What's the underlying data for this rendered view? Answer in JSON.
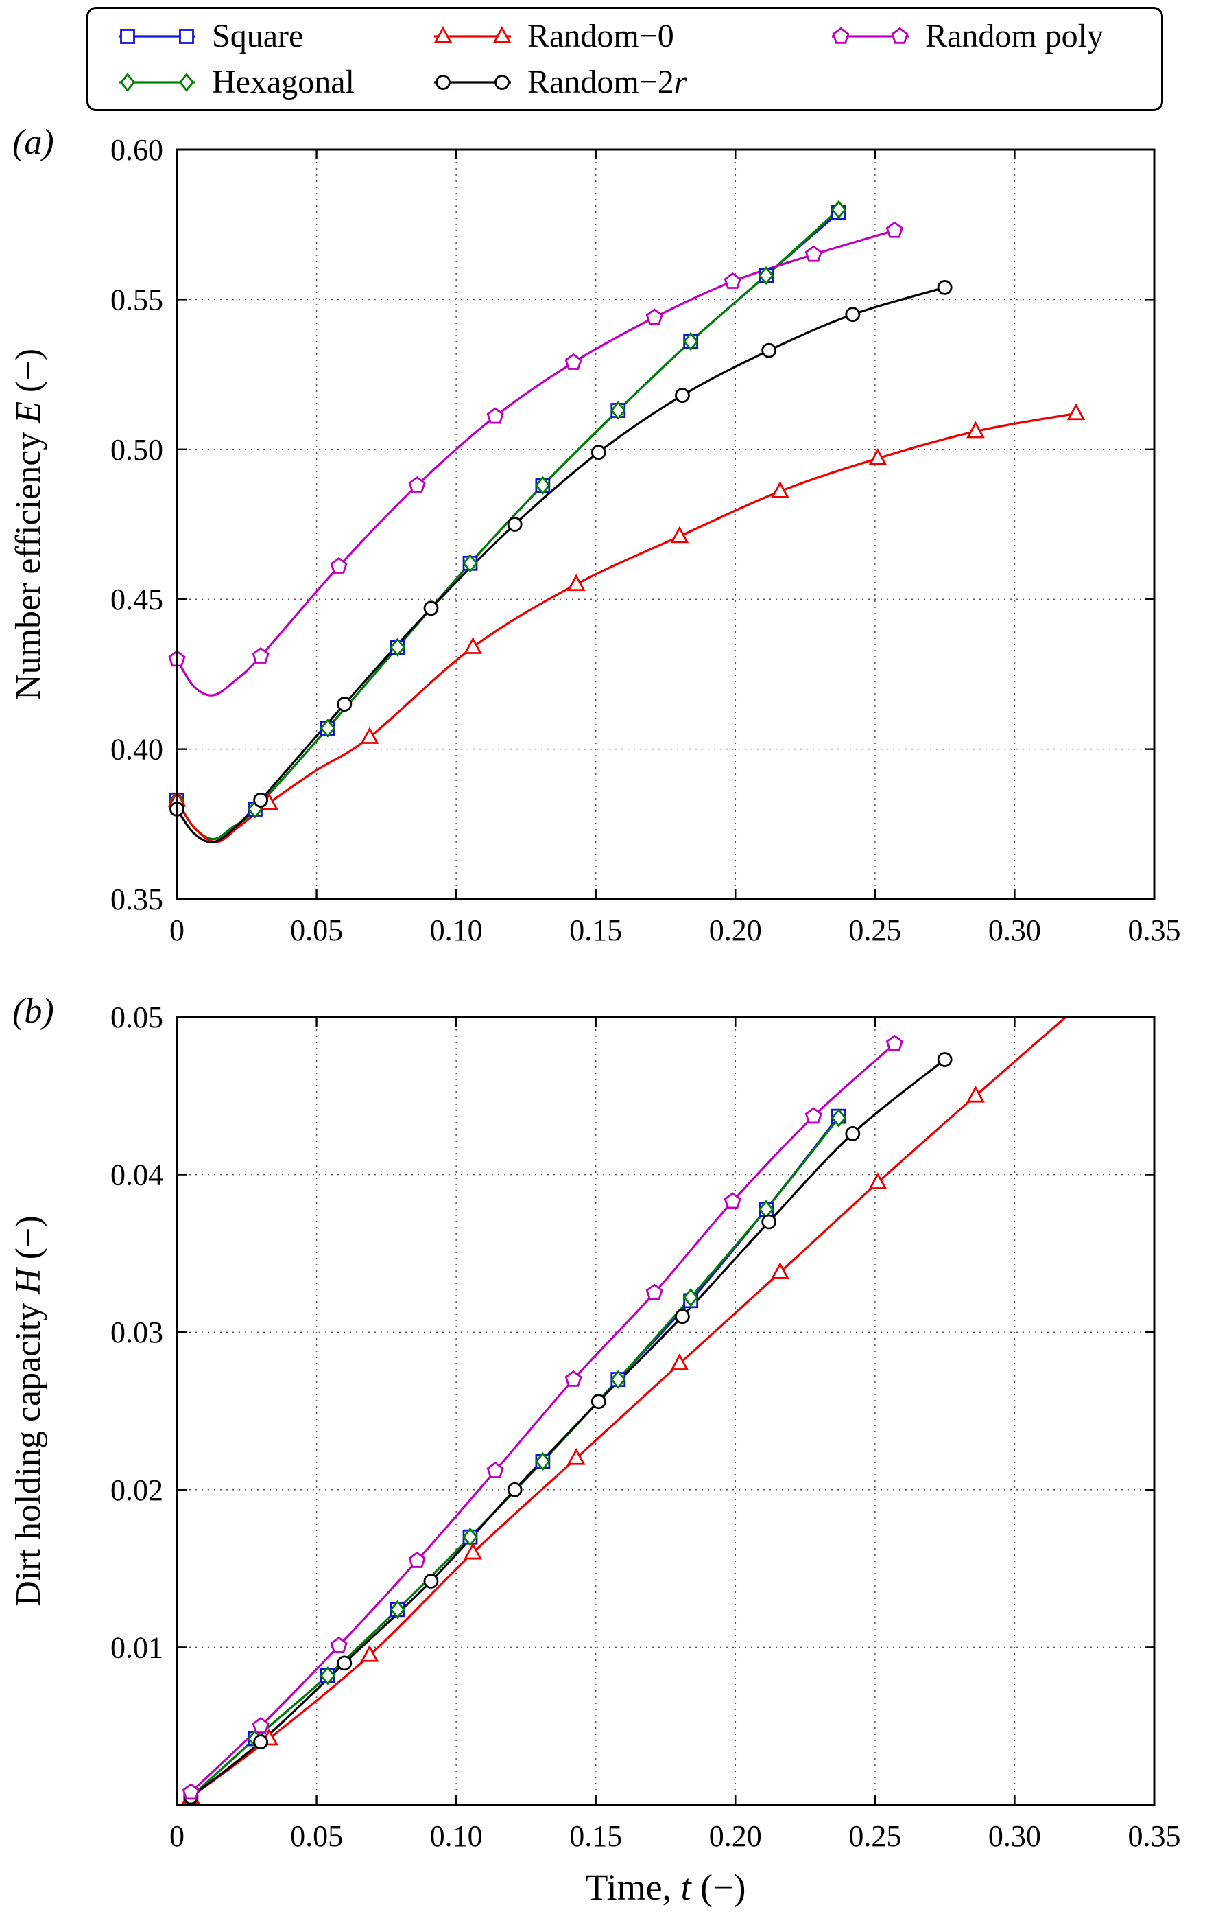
{
  "figure": {
    "panel_a_label": "(a)",
    "panel_b_label": "(b)",
    "background": "#ffffff"
  },
  "legend": {
    "position": "top",
    "border_color": "#000000",
    "items": [
      {
        "key": "square",
        "label": "Square",
        "label_parts": [
          [
            "Square",
            false
          ]
        ],
        "color": "#1111dd",
        "marker": "square"
      },
      {
        "key": "hexagonal",
        "label": "Hexagonal",
        "label_parts": [
          [
            "Hexagonal",
            false
          ]
        ],
        "color": "#008000",
        "marker": "diamond"
      },
      {
        "key": "random_0",
        "label": "Random−0",
        "label_parts": [
          [
            "Random−0",
            false
          ]
        ],
        "color": "#ee0000",
        "marker": "triangle"
      },
      {
        "key": "random_2r",
        "label": "Random−2r",
        "label_parts": [
          [
            "Random−2",
            false
          ],
          [
            "r",
            true
          ]
        ],
        "color": "#000000",
        "marker": "circle"
      },
      {
        "key": "random_poly",
        "label": "Random poly",
        "label_parts": [
          [
            "Random poly",
            false
          ]
        ],
        "color": "#bf00bf",
        "marker": "pentagon"
      }
    ]
  },
  "chart_data": [
    {
      "id": "a",
      "type": "line",
      "title": "",
      "ylabel": "Number efficiency E (−)",
      "ylabel_parts": [
        [
          "Number efficiency ",
          false
        ],
        [
          "E",
          true
        ],
        [
          " (−)",
          false
        ]
      ],
      "xlim": [
        0,
        0.35
      ],
      "ylim": [
        0.35,
        0.6
      ],
      "xticks": [
        0,
        0.05,
        0.1,
        0.15,
        0.2,
        0.25,
        0.3,
        0.35
      ],
      "xtick_labels": [
        "0",
        "0.05",
        "0.10",
        "0.15",
        "0.20",
        "0.25",
        "0.30",
        "0.35"
      ],
      "yticks": [
        0.35,
        0.4,
        0.45,
        0.5,
        0.55,
        0.6
      ],
      "ytick_labels": [
        "0.35",
        "0.40",
        "0.45",
        "0.50",
        "0.55",
        "0.60"
      ],
      "grid": true,
      "legend_position": "top-outside",
      "series": [
        {
          "key": "square",
          "line_x": [
            0,
            0.006,
            0.013,
            0.02,
            0.028,
            0.054,
            0.079,
            0.105,
            0.131,
            0.158,
            0.184,
            0.211,
            0.237
          ],
          "line_y": [
            0.383,
            0.374,
            0.37,
            0.374,
            0.38,
            0.407,
            0.434,
            0.462,
            0.488,
            0.513,
            0.536,
            0.558,
            0.579
          ],
          "marker_x": [
            0,
            0.028,
            0.054,
            0.079,
            0.105,
            0.131,
            0.158,
            0.184,
            0.211,
            0.237
          ],
          "marker_y": [
            0.383,
            0.38,
            0.407,
            0.434,
            0.462,
            0.488,
            0.513,
            0.536,
            0.558,
            0.579
          ]
        },
        {
          "key": "hexagonal",
          "line_x": [
            0,
            0.006,
            0.013,
            0.02,
            0.028,
            0.054,
            0.079,
            0.105,
            0.131,
            0.158,
            0.184,
            0.211,
            0.237
          ],
          "line_y": [
            0.383,
            0.374,
            0.37,
            0.374,
            0.38,
            0.407,
            0.434,
            0.462,
            0.488,
            0.513,
            0.536,
            0.558,
            0.58
          ],
          "marker_x": [
            0,
            0.028,
            0.054,
            0.079,
            0.105,
            0.131,
            0.158,
            0.184,
            0.211,
            0.237
          ],
          "marker_y": [
            0.383,
            0.38,
            0.407,
            0.434,
            0.462,
            0.488,
            0.513,
            0.536,
            0.558,
            0.58
          ]
        },
        {
          "key": "random_0",
          "line_x": [
            0,
            0.006,
            0.014,
            0.022,
            0.033,
            0.05,
            0.069,
            0.106,
            0.143,
            0.18,
            0.216,
            0.251,
            0.286,
            0.322
          ],
          "line_y": [
            0.383,
            0.374,
            0.369,
            0.374,
            0.382,
            0.393,
            0.404,
            0.434,
            0.455,
            0.471,
            0.486,
            0.497,
            0.506,
            0.512
          ],
          "marker_x": [
            0,
            0.033,
            0.069,
            0.106,
            0.143,
            0.18,
            0.216,
            0.251,
            0.286,
            0.322
          ],
          "marker_y": [
            0.383,
            0.382,
            0.404,
            0.434,
            0.455,
            0.471,
            0.486,
            0.497,
            0.506,
            0.512
          ]
        },
        {
          "key": "random_2r",
          "line_x": [
            0,
            0.006,
            0.013,
            0.021,
            0.03,
            0.06,
            0.091,
            0.121,
            0.151,
            0.181,
            0.212,
            0.242,
            0.275
          ],
          "line_y": [
            0.38,
            0.372,
            0.369,
            0.374,
            0.383,
            0.415,
            0.447,
            0.475,
            0.499,
            0.518,
            0.533,
            0.545,
            0.554
          ],
          "marker_x": [
            0,
            0.03,
            0.06,
            0.091,
            0.121,
            0.151,
            0.181,
            0.212,
            0.242,
            0.275
          ],
          "marker_y": [
            0.38,
            0.383,
            0.415,
            0.447,
            0.475,
            0.499,
            0.518,
            0.533,
            0.545,
            0.554
          ]
        },
        {
          "key": "random_poly",
          "line_x": [
            0,
            0.006,
            0.013,
            0.021,
            0.03,
            0.058,
            0.086,
            0.114,
            0.142,
            0.171,
            0.199,
            0.228,
            0.257
          ],
          "line_y": [
            0.43,
            0.421,
            0.418,
            0.423,
            0.431,
            0.461,
            0.488,
            0.511,
            0.529,
            0.544,
            0.556,
            0.565,
            0.573
          ],
          "marker_x": [
            0,
            0.03,
            0.058,
            0.086,
            0.114,
            0.142,
            0.171,
            0.199,
            0.228,
            0.257
          ],
          "marker_y": [
            0.43,
            0.431,
            0.461,
            0.488,
            0.511,
            0.529,
            0.544,
            0.556,
            0.565,
            0.573
          ]
        }
      ]
    },
    {
      "id": "b",
      "type": "line",
      "title": "",
      "xlabel": "Time, t (−)",
      "xlabel_parts": [
        [
          "Time, ",
          false
        ],
        [
          "t",
          true
        ],
        [
          " (−)",
          false
        ]
      ],
      "ylabel": "Dirt holding capacity H (−)",
      "ylabel_parts": [
        [
          "Dirt holding capacity ",
          false
        ],
        [
          "H",
          true
        ],
        [
          " (−)",
          false
        ]
      ],
      "xlim": [
        0,
        0.35
      ],
      "ylim": [
        0,
        0.05
      ],
      "xticks": [
        0,
        0.05,
        0.1,
        0.15,
        0.2,
        0.25,
        0.3,
        0.35
      ],
      "xtick_labels": [
        "0",
        "0.05",
        "0.10",
        "0.15",
        "0.20",
        "0.25",
        "0.30",
        "0.35"
      ],
      "yticks": [
        0,
        0.01,
        0.02,
        0.03,
        0.04,
        0.05
      ],
      "ytick_labels": [
        "",
        "0.01",
        "0.02",
        "0.03",
        "0.04",
        "0.05"
      ],
      "grid": true,
      "series": [
        {
          "key": "square",
          "line_x": [
            0.005,
            0.028,
            0.054,
            0.079,
            0.105,
            0.131,
            0.158,
            0.184,
            0.211,
            0.237
          ],
          "line_y": [
            0.0005,
            0.0042,
            0.0082,
            0.0124,
            0.017,
            0.0218,
            0.027,
            0.032,
            0.0378,
            0.0437
          ],
          "marker_x": [
            0.005,
            0.028,
            0.054,
            0.079,
            0.105,
            0.131,
            0.158,
            0.184,
            0.211,
            0.237
          ],
          "marker_y": [
            0.0005,
            0.0042,
            0.0082,
            0.0124,
            0.017,
            0.0218,
            0.027,
            0.032,
            0.0378,
            0.0437
          ]
        },
        {
          "key": "hexagonal",
          "line_x": [
            0.005,
            0.028,
            0.054,
            0.079,
            0.105,
            0.131,
            0.158,
            0.184,
            0.211,
            0.237
          ],
          "line_y": [
            0.0005,
            0.0042,
            0.0082,
            0.0124,
            0.017,
            0.0218,
            0.027,
            0.0322,
            0.0378,
            0.0436
          ],
          "marker_x": [
            0.005,
            0.028,
            0.054,
            0.079,
            0.105,
            0.131,
            0.158,
            0.184,
            0.211,
            0.237
          ],
          "marker_y": [
            0.0005,
            0.0042,
            0.0082,
            0.0124,
            0.017,
            0.0218,
            0.027,
            0.0322,
            0.0378,
            0.0436
          ]
        },
        {
          "key": "random_0",
          "line_x": [
            0.005,
            0.033,
            0.069,
            0.106,
            0.143,
            0.18,
            0.216,
            0.251,
            0.286,
            0.33
          ],
          "line_y": [
            0.0005,
            0.0042,
            0.0095,
            0.016,
            0.022,
            0.028,
            0.0338,
            0.0395,
            0.045,
            0.0518
          ],
          "marker_x": [
            0.005,
            0.033,
            0.069,
            0.106,
            0.143,
            0.18,
            0.216,
            0.251,
            0.286
          ],
          "marker_y": [
            0.0005,
            0.0042,
            0.0095,
            0.016,
            0.022,
            0.028,
            0.0338,
            0.0395,
            0.045
          ]
        },
        {
          "key": "random_2r",
          "line_x": [
            0.005,
            0.03,
            0.06,
            0.091,
            0.121,
            0.151,
            0.181,
            0.212,
            0.242,
            0.275
          ],
          "line_y": [
            0.0005,
            0.004,
            0.009,
            0.0142,
            0.02,
            0.0256,
            0.031,
            0.037,
            0.0426,
            0.0473
          ],
          "marker_x": [
            0.005,
            0.03,
            0.06,
            0.091,
            0.121,
            0.151,
            0.181,
            0.212,
            0.242,
            0.275
          ],
          "marker_y": [
            0.0005,
            0.004,
            0.009,
            0.0142,
            0.02,
            0.0256,
            0.031,
            0.037,
            0.0426,
            0.0473
          ]
        },
        {
          "key": "random_poly",
          "line_x": [
            0.005,
            0.03,
            0.058,
            0.086,
            0.114,
            0.142,
            0.171,
            0.199,
            0.228,
            0.257
          ],
          "line_y": [
            0.0008,
            0.005,
            0.0101,
            0.0155,
            0.0212,
            0.027,
            0.0325,
            0.0383,
            0.0437,
            0.0483
          ],
          "marker_x": [
            0.005,
            0.03,
            0.058,
            0.086,
            0.114,
            0.142,
            0.171,
            0.199,
            0.228,
            0.257
          ],
          "marker_y": [
            0.0008,
            0.005,
            0.0101,
            0.0155,
            0.0212,
            0.027,
            0.0325,
            0.0383,
            0.0437,
            0.0483
          ]
        }
      ]
    }
  ]
}
